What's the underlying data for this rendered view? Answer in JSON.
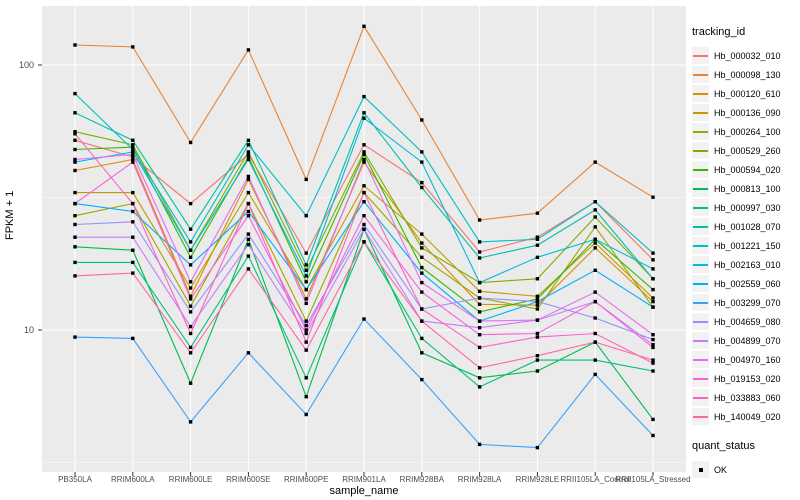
{
  "chart_data": {
    "type": "line",
    "xlabel": "sample_name",
    "ylabel": "FPKM + 1",
    "yscale": "log10",
    "ylim": [
      2.9,
      165
    ],
    "ytick_labels": {
      "t100": "100",
      "t10": "10"
    },
    "yticks_values": [
      100,
      10
    ],
    "yminor_values": [
      31.62,
      3.162
    ],
    "grid": "white major and minor gridlines on gray panel",
    "legend_position": "right",
    "panel_bg": "#EBEBEB",
    "grid_color": "#FFFFFF",
    "tick_label_color": "#4D4D4D",
    "marker": "black-square",
    "legend_title": "tracking_id",
    "quant_legend_title": "quant_status",
    "quant_legend_item": "OK",
    "categories": [
      "PB350LA",
      "RRIM600LA",
      "RRIM600LE",
      "RRIM600SE",
      "RRIM600PE",
      "RRIM901LA",
      "RRIM928BA",
      "RRIM928LA",
      "RRIM928LE",
      "RRII105LA_Control",
      "RRII105LA_Stressed"
    ],
    "series": [
      {
        "name": "Hb_000032_010",
        "color": "#F8766D",
        "values": [
          52,
          45,
          30,
          46,
          19.5,
          50,
          36,
          19.7,
          22.4,
          30.5,
          18.4
        ]
      },
      {
        "name": "Hb_000098_130",
        "color": "#EA8331",
        "values": [
          119,
          117,
          51,
          114,
          37,
          140,
          62,
          26,
          27.6,
          43,
          31.7
        ]
      },
      {
        "name": "Hb_000120_610",
        "color": "#D89000",
        "values": [
          40,
          44,
          13.4,
          37,
          13.1,
          43,
          21.3,
          12.5,
          12.4,
          20.4,
          12.8
        ]
      },
      {
        "name": "Hb_000136_090",
        "color": "#C09B00",
        "values": [
          33,
          33,
          14.4,
          33,
          14.2,
          35,
          23,
          14,
          13.4,
          21.3,
          13.2
        ]
      },
      {
        "name": "Hb_000264_100",
        "color": "#A3A500",
        "values": [
          27,
          30,
          12.3,
          30,
          10.8,
          33,
          18.8,
          13.2,
          12,
          24.5,
          12.2
        ]
      },
      {
        "name": "Hb_000529_260",
        "color": "#7CAE00",
        "values": [
          56,
          50,
          20,
          47,
          16.8,
          47,
          20.4,
          15.1,
          15.6,
          26.7,
          15.6
        ]
      },
      {
        "name": "Hb_000594_020",
        "color": "#39B600",
        "values": [
          48,
          49,
          18.8,
          45,
          15.2,
          46,
          17.2,
          11.7,
          13.1,
          22,
          14.2
        ]
      },
      {
        "name": "Hb_000813_100",
        "color": "#00BB4E",
        "values": [
          20.6,
          20,
          6.3,
          22,
          5.6,
          24,
          8.2,
          6.6,
          7,
          9,
          4.6
        ]
      },
      {
        "name": "Hb_000997_030",
        "color": "#00BF7D",
        "values": [
          18,
          18,
          8.6,
          19,
          6.6,
          21.5,
          9.3,
          6.1,
          7.7,
          7.7,
          7
        ]
      },
      {
        "name": "Hb_001028_070",
        "color": "#00C1A3",
        "values": [
          66,
          52,
          24,
          52,
          17.6,
          66,
          34.5,
          18.7,
          20.9,
          28.4,
          15.6
        ]
      },
      {
        "name": "Hb_001221_150",
        "color": "#00BFC4",
        "values": [
          78,
          48,
          21.5,
          50,
          27,
          76,
          47,
          21.5,
          22,
          30.5,
          19.5
        ]
      },
      {
        "name": "Hb_002163_010",
        "color": "#00BAE0",
        "values": [
          43,
          47,
          20,
          44,
          16,
          63,
          43,
          15.1,
          18.8,
          22,
          17
        ]
      },
      {
        "name": "Hb_002559_060",
        "color": "#00B0F6",
        "values": [
          30,
          28,
          17.6,
          28,
          14.2,
          30.5,
          16.4,
          10.8,
          12.8,
          16.8,
          12.2
        ]
      },
      {
        "name": "Hb_003299_070",
        "color": "#35A2FF",
        "values": [
          9.4,
          9.3,
          4.5,
          8.2,
          4.8,
          11,
          6.5,
          3.7,
          3.6,
          6.8,
          4
        ]
      },
      {
        "name": "Hb_004659_080",
        "color": "#9590FF",
        "values": [
          25,
          25.6,
          11.7,
          23,
          10.4,
          25,
          12,
          13.2,
          12.8,
          11.1,
          9.2
        ]
      },
      {
        "name": "Hb_004899_070",
        "color": "#C77CFF",
        "values": [
          22.4,
          22.4,
          10.3,
          21,
          9.7,
          24,
          10.8,
          10.2,
          10.9,
          12.8,
          8.8
        ]
      },
      {
        "name": "Hb_004970_160",
        "color": "#E76BF3",
        "values": [
          44,
          46,
          15.2,
          38,
          12.6,
          44,
          15.1,
          10.8,
          10.9,
          13.9,
          9.6
        ]
      },
      {
        "name": "Hb_019153_020",
        "color": "#FA62DB",
        "values": [
          30,
          43,
          13.1,
          27,
          10,
          27,
          13.9,
          9.6,
          9.7,
          12.8,
          8.6
        ]
      },
      {
        "name": "Hb_033883_060",
        "color": "#FF61C3",
        "values": [
          55,
          30,
          9.7,
          30,
          9,
          33,
          12,
          8.6,
          9.4,
          9.7,
          7.5
        ]
      },
      {
        "name": "Hb_140049_020",
        "color": "#FF67A4",
        "values": [
          16,
          16.4,
          8.2,
          17,
          8.4,
          21.5,
          10.8,
          7.2,
          8,
          9,
          7.7
        ]
      }
    ]
  }
}
